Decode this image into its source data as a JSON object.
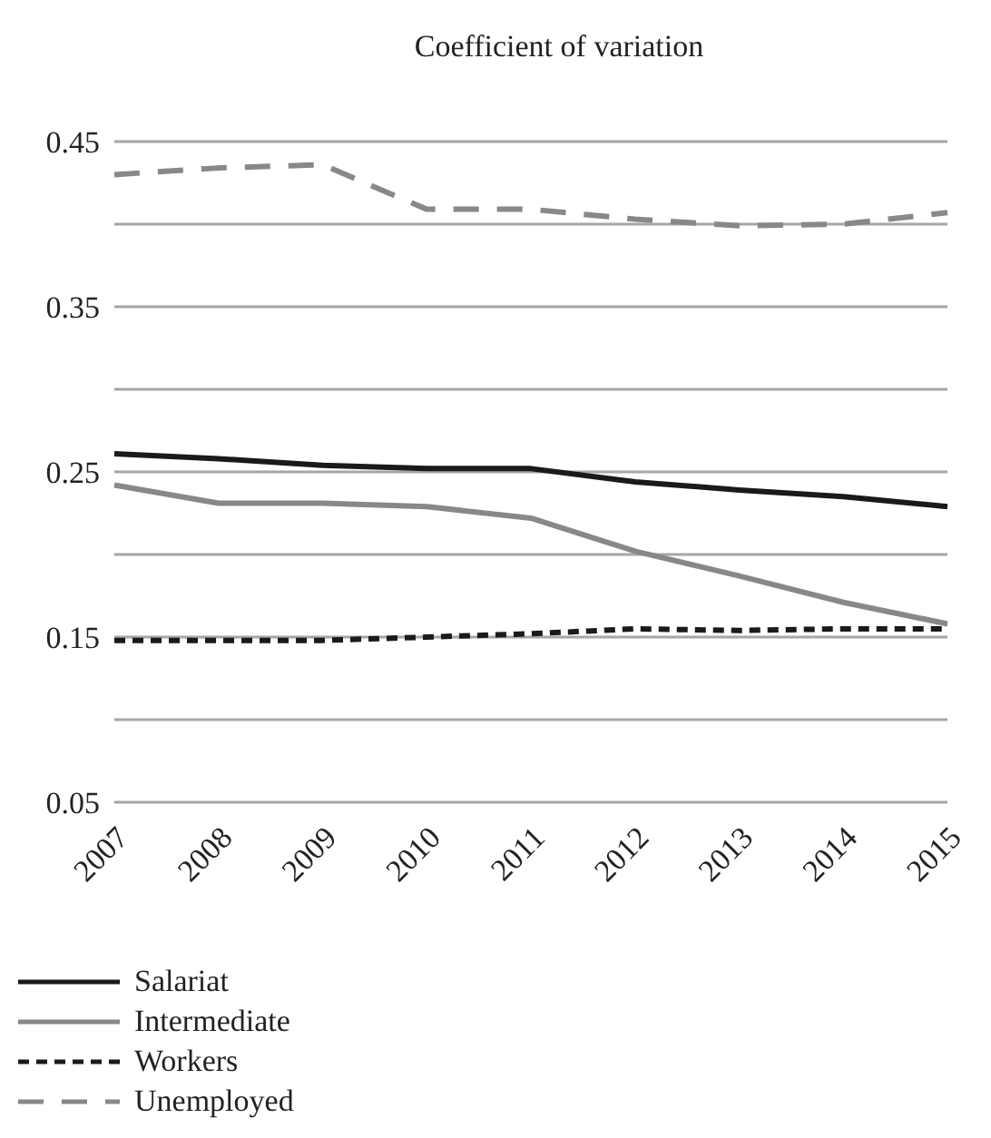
{
  "chart_data": {
    "type": "line",
    "title": "Coefficient of variation",
    "categories": [
      "2007",
      "2008",
      "2009",
      "2010",
      "2011",
      "2012",
      "2013",
      "2014",
      "2015"
    ],
    "series": [
      {
        "name": "Salariat",
        "color": "#1a1a1a",
        "line_style": "solid",
        "values": [
          0.261,
          0.258,
          0.254,
          0.252,
          0.252,
          0.244,
          0.239,
          0.235,
          0.229
        ]
      },
      {
        "name": "Intermediate",
        "color": "#888888",
        "line_style": "solid",
        "values": [
          0.242,
          0.231,
          0.231,
          0.229,
          0.222,
          0.202,
          0.187,
          0.171,
          0.158
        ]
      },
      {
        "name": "Workers",
        "color": "#1a1a1a",
        "line_style": "dashed",
        "values": [
          0.148,
          0.148,
          0.148,
          0.15,
          0.152,
          0.155,
          0.154,
          0.155,
          0.155
        ]
      },
      {
        "name": "Unemployed",
        "color": "#888888",
        "line_style": "dashed",
        "values": [
          0.43,
          0.434,
          0.436,
          0.409,
          0.409,
          0.403,
          0.399,
          0.4,
          0.407
        ]
      }
    ],
    "ylim": [
      0.05,
      0.45
    ],
    "yticks": [
      0.05,
      {
        "value": 0.1,
        "label": null
      },
      0.15,
      {
        "value": 0.2,
        "label": null
      },
      0.25,
      {
        "value": 0.3,
        "label": null
      },
      0.35,
      {
        "value": 0.4,
        "label": null
      },
      0.45
    ],
    "grid": "y",
    "legend": "bottom left",
    "marker": "none"
  }
}
